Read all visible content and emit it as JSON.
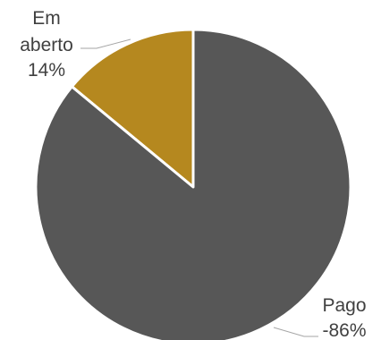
{
  "chart_data": {
    "type": "pie",
    "title": "",
    "slices": [
      {
        "name": "Em aberto",
        "value": 14,
        "label_lines": [
          "Em",
          "aberto",
          "14%"
        ],
        "color": "#b5881f"
      },
      {
        "name": "Pago",
        "value": 86,
        "label_lines": [
          "Pago",
          "-86%"
        ],
        "color": "#575757"
      }
    ]
  }
}
